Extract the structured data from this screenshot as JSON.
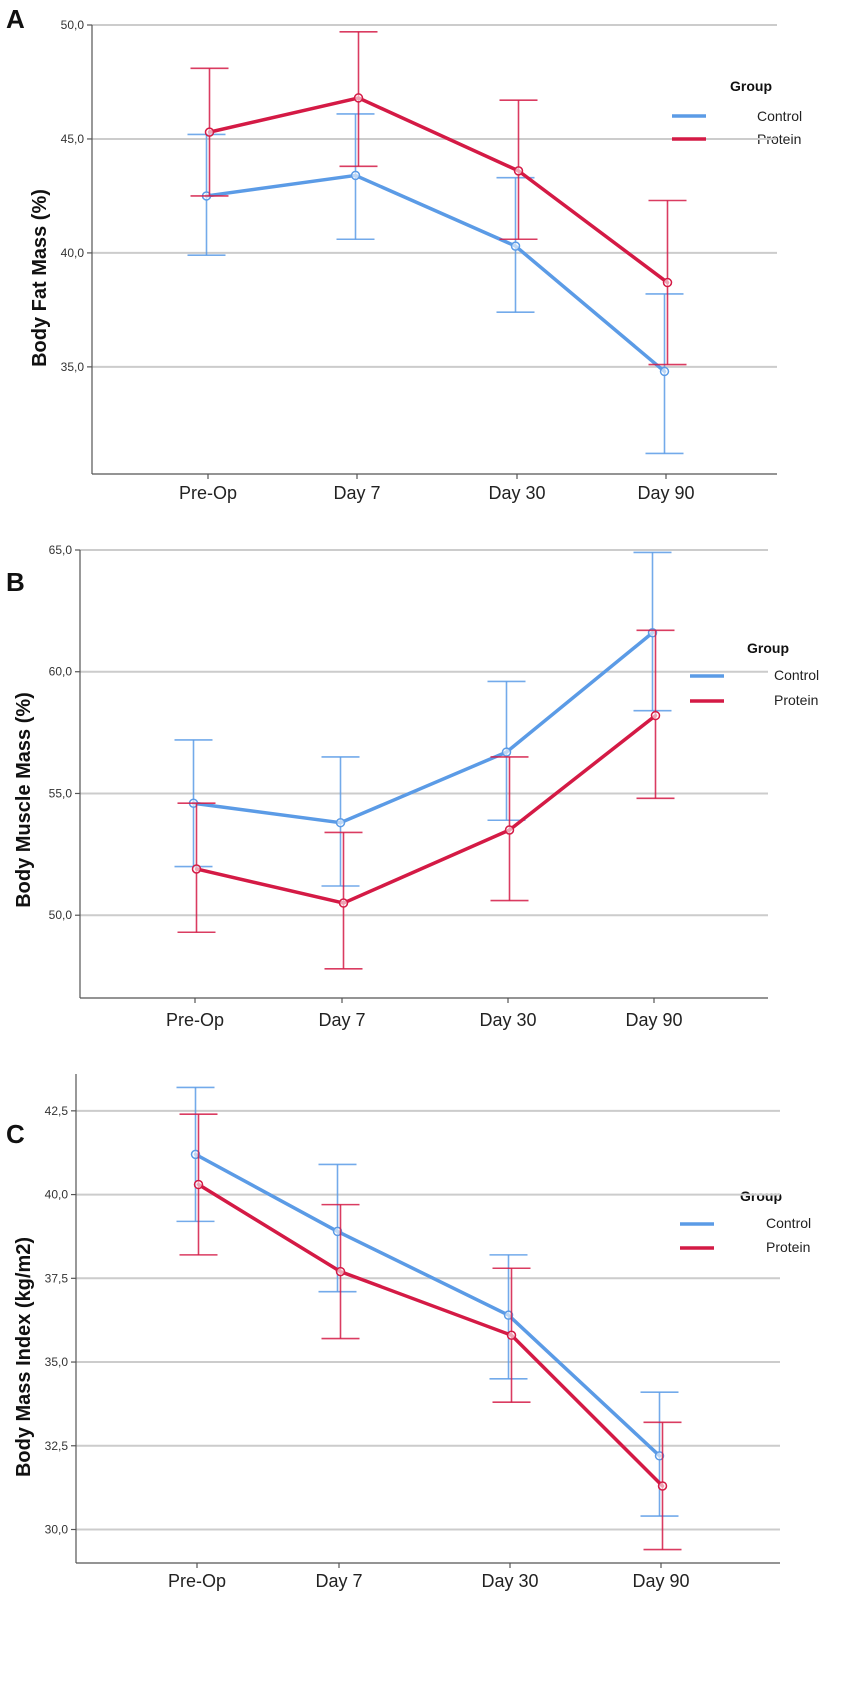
{
  "colors": {
    "control": "#5b9be6",
    "protein": "#d41a45"
  },
  "chart_data": [
    {
      "panel": "A",
      "type": "line",
      "ylabel": "Body Fat Mass (%)",
      "categories": [
        "Pre-Op",
        "Day 7",
        "Day 30",
        "Day 90"
      ],
      "ylim": [
        30.3,
        50.0
      ],
      "yticks": [
        35.0,
        40.0,
        45.0,
        50.0
      ],
      "ytick_labels": [
        "35,0",
        "40,0",
        "45,0",
        "50,0"
      ],
      "legend_title": "Group",
      "series": [
        {
          "name": "Control",
          "values": [
            42.5,
            43.4,
            40.3,
            34.8
          ],
          "lower": [
            39.9,
            40.6,
            37.4,
            31.2
          ],
          "upper": [
            45.2,
            46.1,
            43.3,
            38.2
          ]
        },
        {
          "name": "Protein",
          "values": [
            45.3,
            46.8,
            43.6,
            38.7
          ],
          "lower": [
            42.5,
            43.8,
            40.6,
            35.1
          ],
          "upper": [
            48.1,
            49.7,
            46.7,
            42.3
          ]
        }
      ]
    },
    {
      "panel": "B",
      "type": "line",
      "ylabel": "Body Muscle Mass (%)",
      "categories": [
        "Pre-Op",
        "Day 7",
        "Day 30",
        "Day 90"
      ],
      "ylim": [
        46.6,
        65.0
      ],
      "yticks": [
        50.0,
        55.0,
        60.0,
        65.0
      ],
      "ytick_labels": [
        "50,0",
        "55,0",
        "60,0",
        "65,0"
      ],
      "legend_title": "Group",
      "series": [
        {
          "name": "Control",
          "values": [
            54.6,
            53.8,
            56.7,
            61.6
          ],
          "lower": [
            52.0,
            51.2,
            53.9,
            58.4
          ],
          "upper": [
            57.2,
            56.5,
            59.6,
            64.9
          ]
        },
        {
          "name": "Protein",
          "values": [
            51.9,
            50.5,
            53.5,
            58.2
          ],
          "lower": [
            49.3,
            47.8,
            50.6,
            54.8
          ],
          "upper": [
            54.6,
            53.4,
            56.5,
            61.7
          ]
        }
      ]
    },
    {
      "panel": "C",
      "type": "line",
      "ylabel": "Body Mass Index (kg/m2)",
      "categories": [
        "Pre-Op",
        "Day 7",
        "Day 30",
        "Day 90"
      ],
      "ylim": [
        29.0,
        43.6
      ],
      "yticks": [
        30.0,
        32.5,
        35.0,
        37.5,
        40.0,
        42.5
      ],
      "ytick_labels": [
        "30,0",
        "32,5",
        "35,0",
        "37,5",
        "40,0",
        "42,5"
      ],
      "legend_title": "Group",
      "series": [
        {
          "name": "Control",
          "values": [
            41.2,
            38.9,
            36.4,
            32.2
          ],
          "lower": [
            39.2,
            37.1,
            34.5,
            30.4
          ],
          "upper": [
            43.2,
            40.9,
            38.2,
            34.1
          ]
        },
        {
          "name": "Protein",
          "values": [
            40.3,
            37.7,
            35.8,
            31.3
          ],
          "lower": [
            38.2,
            35.7,
            33.8,
            29.4
          ],
          "upper": [
            42.4,
            39.7,
            37.8,
            33.2
          ]
        }
      ]
    }
  ]
}
